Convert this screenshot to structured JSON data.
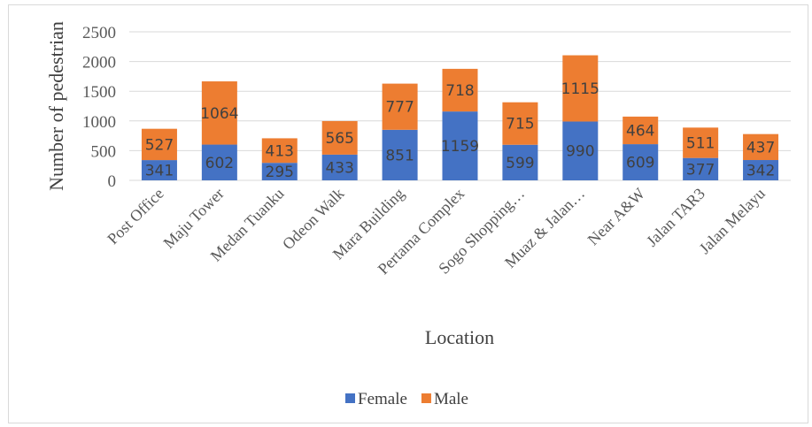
{
  "chart_data": {
    "type": "bar",
    "stacked": true,
    "categories": [
      "Post Office",
      "Maju Tower",
      "Medan Tuanku",
      "Odeon Walk",
      "Mara Building",
      "Pertama Complex",
      "Sogo Shopping…",
      "Muaz & Jalan…",
      "Near A&W",
      "Jalan TAR3",
      "Jalan Melayu"
    ],
    "series": [
      {
        "name": "Female",
        "color": "#4472c4",
        "values": [
          341,
          602,
          295,
          433,
          851,
          1159,
          599,
          990,
          609,
          377,
          342
        ]
      },
      {
        "name": "Male",
        "color": "#ed7d31",
        "values": [
          527,
          1064,
          413,
          565,
          777,
          718,
          715,
          1115,
          464,
          511,
          437
        ]
      }
    ],
    "title": "",
    "xlabel": "Location",
    "ylabel": "Number of pedestrian",
    "ylim": [
      0,
      2500
    ],
    "yticks": [
      0,
      500,
      1000,
      1500,
      2000,
      2500
    ],
    "grid": true,
    "legend_position": "bottom"
  }
}
